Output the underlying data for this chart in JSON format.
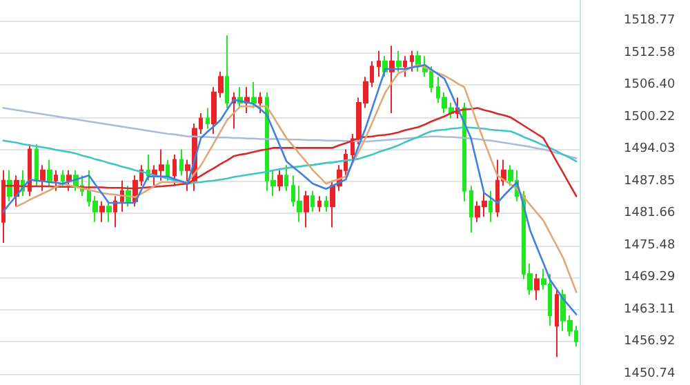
{
  "chart_data": {
    "type": "candlestick",
    "categories": [
      null,
      null,
      null,
      null,
      null,
      null,
      null,
      null,
      null,
      null,
      null,
      null,
      null,
      null,
      null,
      null,
      null,
      null,
      null,
      null,
      null,
      null,
      null,
      null,
      null,
      null,
      null,
      null,
      null,
      null,
      null,
      null,
      null,
      null,
      null,
      null,
      null,
      null,
      null,
      null,
      null,
      null,
      null,
      null,
      null,
      null,
      null,
      null,
      null,
      null,
      null,
      null,
      null,
      null,
      null,
      null,
      null,
      null,
      null,
      null,
      null,
      null,
      null,
      null,
      null,
      null,
      null,
      null,
      null,
      null,
      null,
      null,
      null,
      null,
      null,
      null,
      null,
      null,
      null,
      null,
      null,
      null,
      null,
      null,
      null,
      null,
      null,
      null
    ],
    "ohlc": [
      [
        1480,
        1490,
        1476,
        1488
      ],
      [
        1488,
        1490,
        1484,
        1485
      ],
      [
        1485,
        1489,
        1483,
        1488
      ],
      [
        1488,
        1490,
        1485,
        1486
      ],
      [
        1486,
        1495,
        1485,
        1494
      ],
      [
        1494,
        1495,
        1487,
        1488
      ],
      [
        1488,
        1491,
        1486,
        1490
      ],
      [
        1490,
        1492,
        1487,
        1488
      ],
      [
        1488,
        1490,
        1486,
        1489
      ],
      [
        1489,
        1490,
        1487,
        1488
      ],
      [
        1488,
        1490,
        1486,
        1489
      ],
      [
        1489,
        1490,
        1486,
        1487
      ],
      [
        1487,
        1489,
        1485,
        1486
      ],
      [
        1486,
        1490,
        1483,
        1484
      ],
      [
        1484,
        1485,
        1480,
        1482
      ],
      [
        1482,
        1484,
        1480,
        1483
      ],
      [
        1483,
        1484,
        1480,
        1482
      ],
      [
        1482,
        1485,
        1479,
        1484
      ],
      [
        1484,
        1488,
        1482,
        1486
      ],
      [
        1486,
        1487,
        1483,
        1484
      ],
      [
        1484,
        1489,
        1483,
        1488
      ],
      [
        1488,
        1491,
        1487,
        1490
      ],
      [
        1490,
        1493,
        1488,
        1489
      ],
      [
        1489,
        1491,
        1487,
        1490
      ],
      [
        1490,
        1494,
        1488,
        1491
      ],
      [
        1491,
        1492,
        1488,
        1489
      ],
      [
        1489,
        1493,
        1487,
        1492
      ],
      [
        1492,
        1494,
        1489,
        1490
      ],
      [
        1490,
        1492,
        1486,
        1491
      ],
      [
        1488,
        1499,
        1486,
        1498
      ],
      [
        1498,
        1501,
        1497,
        1500
      ],
      [
        1500,
        1502,
        1498,
        1499
      ],
      [
        1499,
        1506,
        1497,
        1505
      ],
      [
        1505,
        1509,
        1504,
        1508
      ],
      [
        1508,
        1516,
        1502,
        1503
      ],
      [
        1503,
        1505,
        1498,
        1504
      ],
      [
        1504,
        1506,
        1502,
        1503
      ],
      [
        1503,
        1506,
        1501,
        1504
      ],
      [
        1504,
        1507,
        1502,
        1503
      ],
      [
        1503,
        1505,
        1501,
        1504
      ],
      [
        1504,
        1505,
        1486,
        1488
      ],
      [
        1488,
        1490,
        1485,
        1487
      ],
      [
        1487,
        1490,
        1486,
        1489
      ],
      [
        1489,
        1491,
        1486,
        1487
      ],
      [
        1487,
        1489,
        1483,
        1484
      ],
      [
        1484,
        1487,
        1480,
        1482
      ],
      [
        1482,
        1486,
        1479,
        1485
      ],
      [
        1485,
        1486,
        1482,
        1483
      ],
      [
        1483,
        1485,
        1482,
        1484
      ],
      [
        1484,
        1485,
        1482,
        1483
      ],
      [
        1483,
        1488,
        1479,
        1487
      ],
      [
        1487,
        1491,
        1486,
        1490
      ],
      [
        1490,
        1494,
        1489,
        1493
      ],
      [
        1493,
        1497,
        1492,
        1496
      ],
      [
        1496,
        1504,
        1495,
        1503
      ],
      [
        1503,
        1508,
        1502,
        1507
      ],
      [
        1507,
        1511,
        1506,
        1510
      ],
      [
        1510,
        1513,
        1508,
        1511
      ],
      [
        1511,
        1512,
        1508,
        1509
      ],
      [
        1509,
        1514,
        1501,
        1511
      ],
      [
        1511,
        1513,
        1509,
        1510
      ],
      [
        1510,
        1512,
        1508,
        1511
      ],
      [
        1511,
        1513,
        1509,
        1512
      ],
      [
        1512,
        1513,
        1509,
        1510
      ],
      [
        1510,
        1512,
        1508,
        1509
      ],
      [
        1509,
        1510,
        1505,
        1506
      ],
      [
        1506,
        1508,
        1503,
        1504
      ],
      [
        1504,
        1505,
        1501,
        1502
      ],
      [
        1502,
        1503,
        1500,
        1501
      ],
      [
        1501,
        1504,
        1500,
        1502
      ],
      [
        1502,
        1503,
        1484,
        1486
      ],
      [
        1486,
        1487,
        1478,
        1481
      ],
      [
        1481,
        1484,
        1480,
        1483
      ],
      [
        1483,
        1486,
        1481,
        1484
      ],
      [
        1484,
        1486,
        1480,
        1482
      ],
      [
        1482,
        1492,
        1481,
        1488
      ],
      [
        1488,
        1492,
        1487,
        1490
      ],
      [
        1490,
        1491,
        1487,
        1488
      ],
      [
        1488,
        1490,
        1484,
        1485
      ],
      [
        1485,
        1486,
        1469,
        1470
      ],
      [
        1470,
        1472,
        1466,
        1467
      ],
      [
        1467,
        1470,
        1465,
        1469
      ],
      [
        1469,
        1471,
        1467,
        1468
      ],
      [
        1468,
        1470,
        1460,
        1462
      ],
      [
        1460,
        1467,
        1454,
        1466
      ],
      [
        1466,
        1467,
        1459,
        1461
      ],
      [
        1461,
        1462,
        1458,
        1459
      ],
      [
        1459,
        1460,
        1456,
        1457
      ]
    ],
    "colors": [
      "#e8242a",
      "#22e622",
      "#e8242a",
      "#22e622",
      "#e8242a",
      "#22e622",
      "#e8242a",
      "#22e622",
      "#e8242a",
      "#22e622",
      "#e8242a",
      "#22e622",
      "#22e622",
      "#22e622",
      "#22e622",
      "#e8242a",
      "#22e622",
      "#e8242a",
      "#e8242a",
      "#22e622",
      "#e8242a",
      "#e8242a",
      "#22e622",
      "#e8242a",
      "#e8242a",
      "#22e622",
      "#e8242a",
      "#22e622",
      "#e8242a",
      "#e8242a",
      "#e8242a",
      "#22e622",
      "#e8242a",
      "#e8242a",
      "#22e622",
      "#e8242a",
      "#22e622",
      "#e8242a",
      "#22e622",
      "#e8242a",
      "#22e622",
      "#22e622",
      "#e8242a",
      "#22e622",
      "#22e622",
      "#22e622",
      "#e8242a",
      "#22e622",
      "#e8242a",
      "#22e622",
      "#e8242a",
      "#e8242a",
      "#e8242a",
      "#e8242a",
      "#e8242a",
      "#e8242a",
      "#e8242a",
      "#e8242a",
      "#22e622",
      "#e8242a",
      "#22e622",
      "#e8242a",
      "#e8242a",
      "#22e622",
      "#22e622",
      "#22e622",
      "#22e622",
      "#22e622",
      "#22e622",
      "#e8242a",
      "#22e622",
      "#22e622",
      "#e8242a",
      "#e8242a",
      "#22e622",
      "#e8242a",
      "#e8242a",
      "#22e622",
      "#22e622",
      "#22e622",
      "#22e622",
      "#e8242a",
      "#22e622",
      "#22e622",
      "#e8242a",
      "#22e622",
      "#22e622",
      "#22e622"
    ],
    "series": [
      {
        "type": "line",
        "color": "#a8bcd8",
        "values": [
          1502,
          1501.8,
          1501.6,
          1501.4,
          1501.2,
          1501,
          1500.8,
          1500.6,
          1500.4,
          1500.2,
          1500,
          1499.8,
          1499.6,
          1499.4,
          1499.2,
          1499,
          1498.8,
          1498.6,
          1498.4,
          1498.2,
          1498,
          1497.8,
          1497.6,
          1497.4,
          1497.2,
          1497,
          1496.9,
          1496.7,
          1496.5,
          1496.5,
          1496.4,
          1496.4,
          1496.3,
          1496.3,
          1496.3,
          1496.2,
          1496.2,
          1496.1,
          1496.1,
          1496,
          1496,
          1496,
          1496,
          1495.9,
          1495.9,
          1495.9,
          1495.8,
          1495.8,
          1495.8,
          1495.7,
          1495.7,
          1495.7,
          1495.6,
          1495.6,
          1495.6,
          1495.5,
          1495.6,
          1495.7,
          1495.8,
          1495.9,
          1496,
          1496.1,
          1496.2,
          1496.3,
          1496.4,
          1496.5,
          1496.5,
          1496.4,
          1496.4,
          1496.3,
          1496.2,
          1496.1,
          1496,
          1495.8,
          1495.7,
          1495.5,
          1495.3,
          1495.1,
          1494.9,
          1494.7,
          1494.5,
          1494.2,
          1494,
          1493.7,
          1493.3,
          1493,
          1492.6,
          1492.3
        ]
      },
      {
        "type": "line",
        "color": "#3fc4c8",
        "values": [
          1495.7,
          1495.5,
          1495.3,
          1495,
          1494.8,
          1494.6,
          1494.4,
          1494.2,
          1493.9,
          1493.7,
          1493.5,
          1493.2,
          1492.8,
          1492.5,
          1492.1,
          1491.8,
          1491.4,
          1491.1,
          1490.7,
          1490.4,
          1490,
          1489.7,
          1489.4,
          1489,
          1488.7,
          1488.4,
          1488,
          1487.7,
          1487.4,
          1487.6,
          1487.7,
          1487.9,
          1488,
          1488.2,
          1488.4,
          1488.7,
          1488.9,
          1489.1,
          1489.3,
          1489.5,
          1489.7,
          1490,
          1490.2,
          1490.4,
          1490.6,
          1490.7,
          1490.9,
          1491,
          1491.2,
          1491.4,
          1491.5,
          1491.7,
          1491.9,
          1492,
          1492.2,
          1492.6,
          1493,
          1493.5,
          1493.9,
          1494.3,
          1494.8,
          1495.4,
          1495.9,
          1496.4,
          1497,
          1497.5,
          1497.7,
          1497.8,
          1498,
          1498.1,
          1498.3,
          1498.2,
          1498.1,
          1498,
          1497.8,
          1497.7,
          1497.6,
          1497.5,
          1497,
          1496.4,
          1495.9,
          1495.4,
          1494.8,
          1494.3,
          1493.7,
          1493,
          1492.4,
          1491.7
        ]
      },
      {
        "type": "line",
        "color": "#d42a2a",
        "values": [
          1487,
          1487,
          1487,
          1486.9,
          1486.9,
          1486.9,
          1486.9,
          1486.9,
          1486.8,
          1486.8,
          1486.8,
          1486.8,
          1486.7,
          1486.7,
          1486.7,
          1486.7,
          1486.6,
          1486.6,
          1486.6,
          1486.5,
          1486.5,
          1486.6,
          1486.7,
          1486.8,
          1486.9,
          1487,
          1487.1,
          1487.3,
          1487.4,
          1488.2,
          1488.9,
          1489.7,
          1490.4,
          1491.2,
          1491.9,
          1492.7,
          1493,
          1493.2,
          1493.5,
          1493.8,
          1494,
          1494.3,
          1494.3,
          1494.3,
          1494.3,
          1494.3,
          1494.3,
          1494.3,
          1494.3,
          1494.3,
          1494.3,
          1494.8,
          1495.2,
          1495.7,
          1496.2,
          1496.4,
          1496.5,
          1496.7,
          1496.8,
          1497,
          1497.3,
          1497.7,
          1498,
          1498.3,
          1498.8,
          1499.4,
          1499.9,
          1500.4,
          1501,
          1501.5,
          1501.7,
          1501.8,
          1502,
          1501.6,
          1501.3,
          1500.9,
          1500.6,
          1500.2,
          1499.4,
          1498.6,
          1497.8,
          1497,
          1496.2,
          1494,
          1491.7,
          1489.5,
          1487.2,
          1485
        ]
      },
      {
        "type": "line",
        "color": "#e0a878",
        "values": [
          null,
          null,
          1483,
          1483.6,
          1484.3,
          1484.9,
          1485.5,
          1486.1,
          1486.8,
          1487.4,
          1487.1,
          1486.8,
          1486.5,
          1486.2,
          1485.9,
          1485.6,
          1485.4,
          1485.3,
          1485.1,
          1485,
          1484.8,
          1485.5,
          1486.2,
          1487,
          1487.7,
          1487.7,
          1487.7,
          1487.7,
          1487.7,
          1489.3,
          1490.9,
          1493.1,
          1495.3,
          1497.5,
          1499.7,
          1501,
          1502.3,
          1502.3,
          1502.3,
          1502.3,
          1502.3,
          1500.3,
          1498.2,
          1496.2,
          1494.7,
          1493.1,
          1491.6,
          1490,
          1488.7,
          1487.4,
          1487.9,
          1488.3,
          1488.8,
          1491.3,
          1493.7,
          1496.2,
          1499.1,
          1502.1,
          1505,
          1506.9,
          1508.7,
          1509.2,
          1509.8,
          1510.3,
          1509.8,
          1509.2,
          1508.7,
          1508.2,
          1507.5,
          1506.7,
          1506,
          1502.5,
          1498.9,
          1495.6,
          1492.3,
          1489,
          1488.1,
          1487.3,
          1486.4,
          1484.9,
          1483.3,
          1481.8,
          1480.3,
          1477.9,
          1475.5,
          1473.1,
          1469.8,
          1466.5
        ]
      },
      {
        "type": "line",
        "color": "#3f7fe0",
        "values": [
          1482,
          1483.6,
          1485.1,
          1486.7,
          1488.2,
          1488,
          1487.9,
          1487.7,
          1487.6,
          1487.4,
          1487.8,
          1488.2,
          1488.6,
          1489,
          1487.2,
          1485.5,
          1483.7,
          1483.7,
          1483.7,
          1483.7,
          1483.7,
          1486.3,
          1488.8,
          1488.8,
          1488.8,
          1488.8,
          1488.3,
          1487.9,
          1487.4,
          1491.8,
          1496.2,
          1497.4,
          1498.5,
          1499.7,
          1501.7,
          1503.6,
          1503.3,
          1503.1,
          1502.8,
          1501.8,
          1500.7,
          1497.7,
          1494.7,
          1491.7,
          1490.6,
          1489.6,
          1488.5,
          1487.4,
          1486.9,
          1486.4,
          1487,
          1487.6,
          1488.2,
          1491.5,
          1494.8,
          1498.1,
          1501.9,
          1505.7,
          1509.5,
          1509.5,
          1509.5,
          1509.5,
          1509.8,
          1510,
          1510.3,
          1509.4,
          1508.5,
          1507.6,
          1504.8,
          1501.9,
          1499.1,
          1496.2,
          1490.9,
          1485.6,
          1484.7,
          1483.7,
          1485.1,
          1486.4,
          1487.7,
          1483.1,
          1478.4,
          1475.2,
          1472.1,
          1468.9,
          1467.1,
          1465.2,
          1463.7,
          1462.2
        ]
      }
    ],
    "ylim": [
      1448.6,
      1522.8
    ],
    "yticks": [
      1518.77,
      1512.58,
      {
        "value": 1506.4,
        "label": "1506.40"
      },
      1500.22,
      1494.03,
      1487.85,
      1481.66,
      1475.48,
      1469.29,
      1463.11,
      1456.92,
      1450.74
    ],
    "tick_labels": "y",
    "grid": "y",
    "line_style": "solid"
  }
}
